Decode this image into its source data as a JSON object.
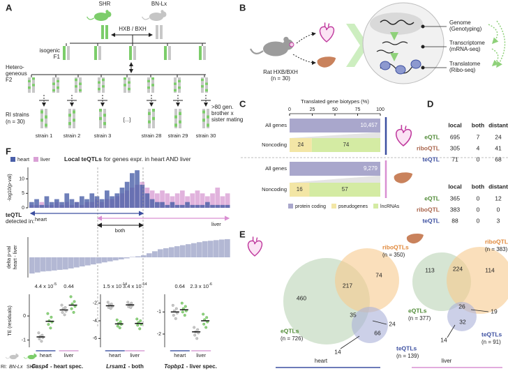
{
  "panel_labels": [
    "A",
    "B",
    "C",
    "D",
    "E",
    "F"
  ],
  "panel_a": {
    "parents": [
      "SHR",
      "BN-Lx"
    ],
    "cross": "HXB / BXH",
    "f1": [
      "isogenic",
      "F1"
    ],
    "f2": [
      "Hetero-",
      "geneous",
      "F2"
    ],
    "ri": [
      "RI strains",
      "(n = 30)"
    ],
    "strains": [
      "strain 1",
      "strain 2",
      "strain 3",
      "[...]",
      "strain 28",
      "strain 29",
      "strain 30"
    ],
    "mating": [
      ">80 gen.",
      "brother x",
      "sister mating"
    ]
  },
  "panel_b": {
    "rat": [
      "Rat HXB/BXH",
      "(n = 30)"
    ],
    "layers": [
      {
        "name": "Genome",
        "method": "(Genotyping)"
      },
      {
        "name": "Transcriptome",
        "method": "(mRNA-seq)"
      },
      {
        "name": "Translatome",
        "method": "(Ribo-seq)"
      }
    ]
  },
  "panel_c": {
    "type": "bar",
    "title": "Translated gene biotypes (%)",
    "xlim": [
      0,
      100
    ],
    "xticks": [
      0,
      25,
      50,
      75,
      100
    ],
    "categories": [
      "All genes",
      "Noncoding",
      "All genes",
      "Noncoding"
    ],
    "tissue_colors": [
      "#3c4fa0",
      "#d98fd2"
    ],
    "series": [
      {
        "name": "protein coding",
        "color": "#a9a7cc",
        "values": [
          100,
          null,
          100,
          null
        ],
        "counts": [
          "10,457",
          null,
          "9,279",
          null
        ]
      },
      {
        "name": "pseudogenes",
        "color": "#f3e6a6",
        "values": [
          null,
          24.5,
          null,
          21.9
        ],
        "counts": [
          null,
          "24",
          null,
          "16"
        ]
      },
      {
        "name": "lncRNAs",
        "color": "#d4eba3",
        "values": [
          null,
          75.5,
          null,
          78.1
        ],
        "counts": [
          null,
          "74",
          null,
          "57"
        ]
      }
    ]
  },
  "panel_d": {
    "columns": [
      "local",
      "both",
      "distant"
    ],
    "row_colors": [
      "#4f8a35",
      "#a8634a",
      "#3c4fa0"
    ],
    "tables": [
      {
        "rows": [
          {
            "label": "eQTL",
            "cells": [
              "695",
              "7",
              "24"
            ]
          },
          {
            "label": "riboQTL",
            "cells": [
              "305",
              "4",
              "41"
            ]
          },
          {
            "label": "teQTL",
            "cells": [
              "71",
              "0",
              "68"
            ]
          }
        ]
      },
      {
        "rows": [
          {
            "label": "eQTL",
            "cells": [
              "365",
              "0",
              "12"
            ]
          },
          {
            "label": "riboQTL",
            "cells": [
              "383",
              "0",
              "0"
            ]
          },
          {
            "label": "teQTL",
            "cells": [
              "88",
              "0",
              "3"
            ]
          }
        ]
      }
    ]
  },
  "panel_e": {
    "venns": [
      {
        "tissue": "heart",
        "sets": [
          {
            "name": "eQTLs",
            "n": "(n = 726)"
          },
          {
            "name": "riboQTLs",
            "n": "(n = 350)"
          },
          {
            "name": "teQTLs",
            "n": "(n = 139)"
          }
        ],
        "regions": [
          "460",
          "217",
          "74",
          "35",
          "24",
          "14",
          "66"
        ]
      },
      {
        "tissue": "liver",
        "sets": [
          {
            "name": "eQTLs",
            "n": "(n = 377)"
          },
          {
            "name": "riboQTLs",
            "n": "(n = 383)"
          },
          {
            "name": "teQTLs",
            "n": "(n = 91)"
          }
        ],
        "regions": [
          "113",
          "224",
          "114",
          "26",
          "19",
          "14",
          "32"
        ]
      }
    ]
  },
  "panel_f": {
    "legend": [
      {
        "name": "heart",
        "color": "#4a5fa8"
      },
      {
        "name": "liver",
        "color": "#d9a0d5"
      }
    ],
    "title_bold": "Local teQTLs",
    "title_rest": "for genes expr. in heart AND liver",
    "histogram": {
      "ylabel": "-log10(p-val)",
      "ylim": [
        0,
        14
      ],
      "yticks": [
        0,
        5,
        10
      ],
      "heart": [
        2,
        3,
        1,
        4,
        2,
        3,
        2,
        5,
        3,
        2,
        4,
        3,
        5,
        4,
        3,
        6,
        4,
        5,
        7,
        9,
        12,
        13,
        8,
        5,
        3,
        2,
        2,
        1,
        2,
        1,
        1,
        2,
        1,
        1,
        1,
        2,
        1,
        1,
        1,
        1
      ],
      "liver": [
        1,
        1,
        2,
        1,
        1,
        2,
        1,
        2,
        1,
        2,
        1,
        2,
        2,
        3,
        2,
        3,
        3,
        4,
        5,
        6,
        7,
        8,
        9,
        7,
        6,
        5,
        6,
        5,
        4,
        5,
        6,
        4,
        5,
        6,
        5,
        4,
        5,
        7,
        4,
        5
      ]
    },
    "detected": [
      "teQTL",
      "detected in:"
    ],
    "arrows": [
      "heart",
      "both",
      "liver"
    ],
    "delta": {
      "ylabel": [
        "delta p-val",
        "heart - liver"
      ],
      "ylim": [
        -1,
        1
      ],
      "values": [
        -0.8,
        -0.75,
        -0.7,
        -0.68,
        -0.65,
        -0.62,
        -0.6,
        -0.55,
        -0.5,
        -0.45,
        -0.4,
        -0.35,
        -0.3,
        -0.25,
        -0.2,
        -0.15,
        -0.1,
        -0.05,
        0.02,
        0.05,
        0.1,
        0.2,
        0.3,
        0.4,
        0.45,
        0.5,
        0.55,
        0.6,
        0.65,
        0.7,
        0.75,
        0.8,
        0.82,
        0.85,
        0.88,
        0.9
      ]
    },
    "dots_ylabel": "TE (residuals)",
    "strain_colors": {
      "bn_lx": "#bdbdbd",
      "shr": "#7ccd6a"
    },
    "dot_panels": [
      {
        "gene": "Casp4",
        "suffix": "- heart spec.",
        "ylim": [
          -1.3,
          0.9
        ],
        "yticks": [
          0,
          -1
        ],
        "groups": [
          {
            "tissue": "heart",
            "p": {
              "base": "4.4 x 10",
              "exp": "-5"
            },
            "bn_lx": [
              -0.7,
              -0.8,
              -0.85,
              -0.9,
              -0.95,
              -1.05
            ],
            "shr": [
              0.1,
              -0.05,
              -0.2,
              -0.25,
              -0.35,
              -0.5
            ],
            "medians": [
              -0.87,
              -0.22
            ]
          },
          {
            "tissue": "liver",
            "p": {
              "base": "0.44"
            },
            "bn_lx": [
              0.45,
              0.35,
              0.3,
              0.2,
              0.15,
              0.05
            ],
            "shr": [
              0.8,
              0.6,
              0.5,
              0.4,
              0.3,
              0.15
            ],
            "medians": [
              0.25,
              0.45
            ]
          }
        ]
      },
      {
        "gene": "Lrsam1",
        "suffix": "- both",
        "ylim": [
          -7,
          -1
        ],
        "yticks": [
          -2,
          -4,
          -6
        ],
        "groups": [
          {
            "tissue": "heart",
            "p": {
              "base": "1.5 x 10",
              "exp": "-14"
            },
            "bn_lx": [
              -1.9,
              -2.1,
              -2.2,
              -2.4,
              -2.5,
              -2.6
            ],
            "shr": [
              -3.9,
              -4.1,
              -4.3,
              -4.4,
              -4.6,
              -4.8
            ],
            "medians": [
              -2.3,
              -4.35
            ]
          },
          {
            "tissue": "liver",
            "p": {
              "base": "3.4 x 10",
              "exp": "-14"
            },
            "bn_lx": [
              -1.9,
              -2.0,
              -2.2,
              -2.3,
              -2.4,
              -2.5
            ],
            "shr": [
              -3.8,
              -4.0,
              -4.2,
              -4.4,
              -4.5,
              -4.9
            ],
            "medians": [
              -2.2,
              -4.3
            ]
          }
        ]
      },
      {
        "gene": "Topbp1",
        "suffix": "- liver spec.",
        "ylim": [
          -2.6,
          -0.2
        ],
        "yticks": [
          -1,
          -2
        ],
        "groups": [
          {
            "tissue": "heart",
            "p": {
              "base": "0.64"
            },
            "bn_lx": [
              -0.7,
              -0.85,
              -0.95,
              -1.05,
              -1.15,
              -1.3
            ],
            "shr": [
              -0.6,
              -0.75,
              -0.85,
              -0.95,
              -1.0,
              -1.15
            ],
            "medians": [
              -1.0,
              -0.9
            ]
          },
          {
            "tissue": "liver",
            "p": {
              "base": "2.3 x 10",
              "exp": "-6"
            },
            "bn_lx": [
              -1.7,
              -1.8,
              -1.9,
              -1.95,
              -2.05,
              -2.2
            ],
            "shr": [
              -1.1,
              -1.25,
              -1.35,
              -1.45,
              -1.55,
              -1.7
            ],
            "medians": [
              -1.9,
              -1.4
            ]
          }
        ]
      }
    ],
    "footer": [
      "RI:",
      "BN-Lx",
      "SHR"
    ]
  }
}
